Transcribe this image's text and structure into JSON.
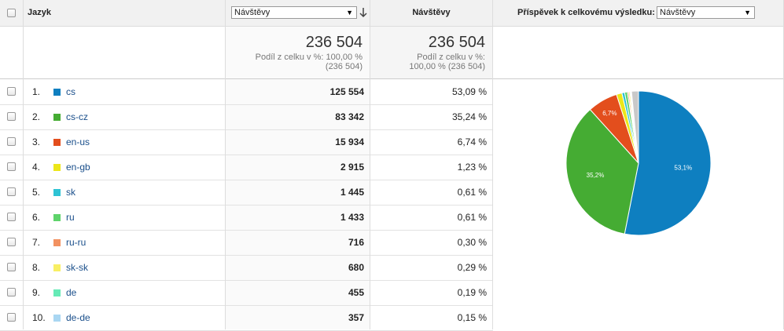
{
  "header": {
    "language_label": "Jazyk",
    "metric_select": "Návštěvy",
    "visits_label": "Návštěvy",
    "contribution_label": "Příspěvek k celkovému výsledku:",
    "contribution_select": "Návštěvy"
  },
  "summary": {
    "col1_total": "236 504",
    "col1_line1": "Podíl z celku v %: 100,00 %",
    "col1_line2": "(236 504)",
    "col2_total": "236 504",
    "col2_line1": "Podíl z celku v %:",
    "col2_line2": "100,00 % (236 504)"
  },
  "rows": [
    {
      "num": "1.",
      "lang": "cs",
      "visits": "125 554",
      "pct": "53,09 %",
      "color": "#0e7fc0"
    },
    {
      "num": "2.",
      "lang": "cs-cz",
      "visits": "83 342",
      "pct": "35,24 %",
      "color": "#45ac33"
    },
    {
      "num": "3.",
      "lang": "en-us",
      "visits": "15 934",
      "pct": "6,74 %",
      "color": "#e34e1d"
    },
    {
      "num": "4.",
      "lang": "en-gb",
      "visits": "2 915",
      "pct": "1,23 %",
      "color": "#ece619"
    },
    {
      "num": "5.",
      "lang": "sk",
      "visits": "1 445",
      "pct": "0,61 %",
      "color": "#2ec3d4"
    },
    {
      "num": "6.",
      "lang": "ru",
      "visits": "1 433",
      "pct": "0,61 %",
      "color": "#5ed36b"
    },
    {
      "num": "7.",
      "lang": "ru-ru",
      "visits": "716",
      "pct": "0,30 %",
      "color": "#f29161"
    },
    {
      "num": "8.",
      "lang": "sk-sk",
      "visits": "680",
      "pct": "0,29 %",
      "color": "#f8ef64"
    },
    {
      "num": "9.",
      "lang": "de",
      "visits": "455",
      "pct": "0,19 %",
      "color": "#66eab6"
    },
    {
      "num": "10.",
      "lang": "de-de",
      "visits": "357",
      "pct": "0,15 %",
      "color": "#a9d6f2"
    }
  ],
  "chart_data": {
    "type": "pie",
    "slices": [
      {
        "label": "cs",
        "value": 53.09,
        "color": "#0e7fc0",
        "text": "53,1%"
      },
      {
        "label": "cs-cz",
        "value": 35.24,
        "color": "#45ac33",
        "text": "35,2%"
      },
      {
        "label": "en-us",
        "value": 6.74,
        "color": "#e34e1d",
        "text": "6,7%"
      },
      {
        "label": "en-gb",
        "value": 1.23,
        "color": "#ece619",
        "text": ""
      },
      {
        "label": "sk",
        "value": 0.61,
        "color": "#2ec3d4",
        "text": ""
      },
      {
        "label": "ru",
        "value": 0.61,
        "color": "#5ed36b",
        "text": ""
      },
      {
        "label": "ru-ru",
        "value": 0.3,
        "color": "#f29161",
        "text": ""
      },
      {
        "label": "sk-sk",
        "value": 0.29,
        "color": "#f8ef64",
        "text": ""
      },
      {
        "label": "de",
        "value": 0.19,
        "color": "#66eab6",
        "text": ""
      },
      {
        "label": "de-de",
        "value": 0.15,
        "color": "#a9d6f2",
        "text": ""
      },
      {
        "label": "other",
        "value": 1.55,
        "color": "#c9c9c9",
        "text": ""
      }
    ]
  }
}
